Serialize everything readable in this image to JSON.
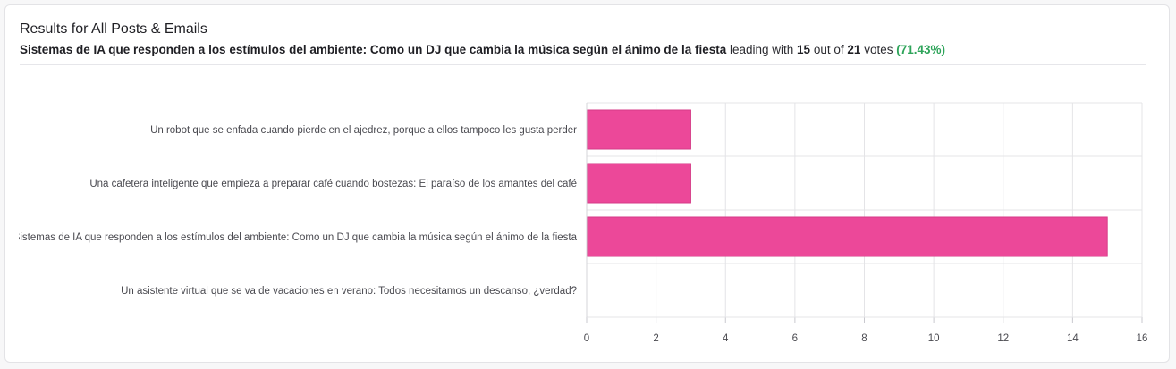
{
  "header": {
    "title": "Results for All Posts & Emails",
    "leader": "Sistemas de IA que responden a los estímulos del ambiente: Como un DJ que cambia la música según el ánimo de la fiesta",
    "leading_with": "leading with",
    "votes_leader": "15",
    "out_of": "out of",
    "votes_total": "21",
    "votes_word": "votes",
    "percent": "(71.43%)"
  },
  "colors": {
    "bar": "#ec4899",
    "grid": "#e4e4e7",
    "accent_green": "#2ea45a"
  },
  "chart_data": {
    "type": "bar",
    "orientation": "horizontal",
    "categories": [
      "Un robot que se enfada cuando pierde en el ajedrez, porque a ellos tampoco les gusta perder",
      "Una cafetera inteligente que empieza a preparar café cuando bostezas: El paraíso de los amantes del café",
      "Sistemas de IA que responden a los estímulos del ambiente: Como un DJ que cambia la música según el ánimo de la fiesta",
      "Un asistente virtual que se va de vacaciones en verano: Todos necesitamos un descanso, ¿verdad?"
    ],
    "values": [
      3,
      3,
      15,
      0
    ],
    "xlim": [
      0,
      16
    ],
    "xticks": [
      0,
      2,
      4,
      6,
      8,
      10,
      12,
      14,
      16
    ],
    "grid": true,
    "legend": "none"
  }
}
